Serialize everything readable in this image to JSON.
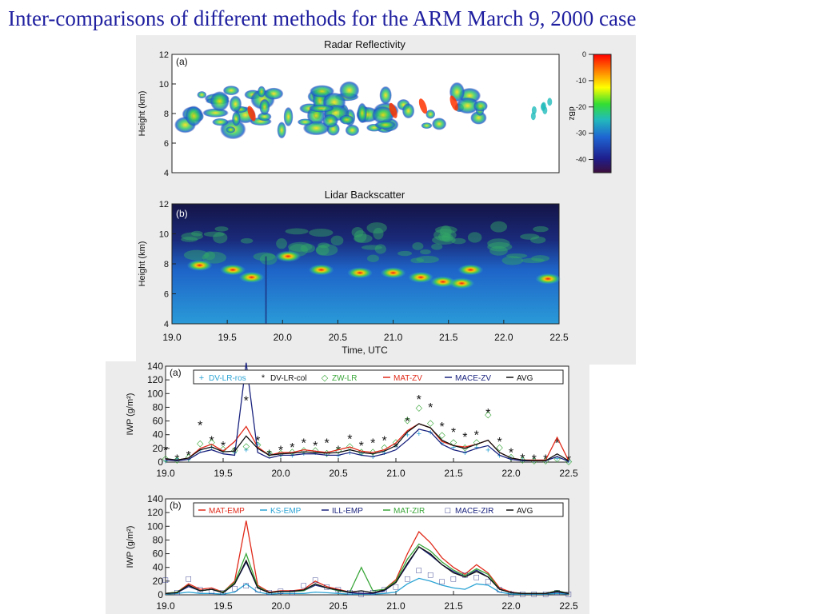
{
  "slide_title": "Inter-comparisons of different methods for the ARM March 9, 2000 case",
  "colors": {
    "title": "#1f1fa0",
    "colorbar": [
      "#ffffff",
      "#ff0000",
      "#ff8000",
      "#ffff00",
      "#33dd33",
      "#22bbbb",
      "#1e64d2",
      "#1e1e8c",
      "#3c0f3c"
    ]
  },
  "chart_data": [
    {
      "type": "heatmap",
      "panel_label": "(a)",
      "title": "Radar Reflectivity",
      "ylabel": "Height (km)",
      "y_ticks": [
        "4",
        "6",
        "8",
        "10",
        "12"
      ],
      "ylim": [
        4,
        12
      ],
      "xlim": [
        19.0,
        22.5
      ],
      "colorbar": {
        "label": "dBz",
        "ticks": [
          "0",
          "-10",
          "-20",
          "-30",
          "-40"
        ],
        "range": [
          -45,
          0
        ]
      }
    },
    {
      "type": "heatmap",
      "panel_label": "(b)",
      "title": "Lidar Backscatter",
      "ylabel": "Height (km)",
      "xlabel": "Time, UTC",
      "y_ticks": [
        "4",
        "6",
        "8",
        "10",
        "12"
      ],
      "x_ticks": [
        "19.0",
        "19.5",
        "20.0",
        "20.5",
        "21.0",
        "21.5",
        "22.0",
        "22.5"
      ],
      "ylim": [
        4,
        12
      ],
      "xlim": [
        19.0,
        22.5
      ]
    },
    {
      "type": "line",
      "panel_label": "(a)",
      "ylabel": "IWP (g/m²)",
      "y_ticks": [
        "0",
        "20",
        "40",
        "60",
        "80",
        "100",
        "120",
        "140"
      ],
      "x_ticks": [
        "19.0",
        "19.5",
        "20.0",
        "20.5",
        "21.0",
        "21.5",
        "22.0",
        "22.5"
      ],
      "ylim": [
        0,
        140
      ],
      "xlim": [
        19.0,
        22.5
      ],
      "x": [
        19.0,
        19.1,
        19.2,
        19.3,
        19.4,
        19.5,
        19.6,
        19.7,
        19.8,
        19.9,
        20.0,
        20.1,
        20.2,
        20.3,
        20.4,
        20.5,
        20.6,
        20.7,
        20.8,
        20.9,
        21.0,
        21.1,
        21.2,
        21.3,
        21.4,
        21.5,
        21.6,
        21.7,
        21.8,
        21.9,
        22.0,
        22.1,
        22.2,
        22.3,
        22.4,
        22.5
      ],
      "series": [
        {
          "name": "DV-LR-ros",
          "color": "#2aa3d4",
          "marker": "+",
          "values": [
            2,
            5,
            4,
            18,
            22,
            16,
            14,
            18,
            26,
            12,
            10,
            10,
            13,
            14,
            11,
            10,
            14,
            12,
            8,
            14,
            24,
            40,
            42,
            44,
            28,
            22,
            14,
            22,
            18,
            10,
            6,
            4,
            3,
            3,
            6,
            2
          ]
        },
        {
          "name": "DV-LR-col",
          "color": "#111111",
          "marker": "*",
          "values": [
            16,
            3,
            8,
            52,
            30,
            22,
            14,
            88,
            30,
            10,
            16,
            20,
            26,
            22,
            26,
            16,
            32,
            22,
            26,
            30,
            20,
            58,
            90,
            78,
            50,
            42,
            35,
            38,
            70,
            28,
            12,
            4,
            3,
            3,
            26,
            2
          ]
        },
        {
          "name": "ZW-LR",
          "color": "#3aa63a",
          "marker": "◇",
          "values": [
            6,
            4,
            8,
            28,
            30,
            20,
            18,
            24,
            26,
            14,
            14,
            16,
            18,
            18,
            14,
            18,
            24,
            16,
            16,
            22,
            30,
            62,
            80,
            58,
            40,
            30,
            22,
            30,
            70,
            22,
            8,
            4,
            3,
            3,
            6,
            2
          ]
        },
        {
          "name": "MAT-ZV",
          "color": "#e02a1a",
          "marker": "",
          "values": [
            4,
            3,
            6,
            20,
            26,
            16,
            30,
            52,
            22,
            10,
            14,
            14,
            18,
            16,
            14,
            18,
            22,
            16,
            14,
            18,
            28,
            46,
            56,
            50,
            30,
            24,
            22,
            26,
            32,
            14,
            6,
            3,
            3,
            3,
            36,
            2
          ]
        },
        {
          "name": "MACE-ZV",
          "color": "#1a237e",
          "marker": "",
          "values": [
            3,
            2,
            4,
            14,
            18,
            12,
            10,
            145,
            14,
            6,
            10,
            10,
            12,
            12,
            10,
            10,
            14,
            10,
            8,
            12,
            18,
            32,
            48,
            44,
            26,
            18,
            14,
            20,
            24,
            10,
            4,
            2,
            2,
            2,
            8,
            1
          ]
        },
        {
          "name": "AVG",
          "color": "#111111",
          "marker": "",
          "values": [
            5,
            3,
            6,
            18,
            22,
            15,
            16,
            38,
            20,
            10,
            12,
            13,
            15,
            14,
            13,
            14,
            18,
            14,
            12,
            16,
            24,
            44,
            56,
            50,
            32,
            24,
            20,
            26,
            32,
            14,
            6,
            3,
            2,
            2,
            12,
            2
          ]
        }
      ]
    },
    {
      "type": "line",
      "panel_label": "(b)",
      "ylabel": "IWP (g/m²)",
      "y_ticks": [
        "0",
        "20",
        "40",
        "60",
        "80",
        "100",
        "120",
        "140"
      ],
      "x_ticks": [
        "19.0",
        "19.5",
        "20.0",
        "20.5",
        "21.0",
        "21.5",
        "22.0",
        "22.5"
      ],
      "ylim": [
        0,
        140
      ],
      "xlim": [
        19.0,
        22.5
      ],
      "x": [
        19.0,
        19.1,
        19.2,
        19.3,
        19.4,
        19.5,
        19.6,
        19.7,
        19.8,
        19.9,
        20.0,
        20.1,
        20.2,
        20.3,
        20.4,
        20.5,
        20.6,
        20.7,
        20.8,
        20.9,
        21.0,
        21.1,
        21.2,
        21.3,
        21.4,
        21.5,
        21.6,
        21.7,
        21.8,
        21.9,
        22.0,
        22.1,
        22.2,
        22.3,
        22.4,
        22.5
      ],
      "series": [
        {
          "name": "MAT-EMP",
          "color": "#e02a1a",
          "marker": "",
          "values": [
            2,
            4,
            16,
            8,
            10,
            4,
            20,
            108,
            14,
            4,
            6,
            6,
            8,
            20,
            12,
            8,
            4,
            2,
            2,
            8,
            22,
            60,
            92,
            76,
            54,
            40,
            30,
            44,
            32,
            10,
            4,
            2,
            2,
            2,
            6,
            2
          ]
        },
        {
          "name": "KS-EMP",
          "color": "#2aa3d4",
          "marker": "",
          "values": [
            1,
            2,
            4,
            2,
            2,
            1,
            4,
            16,
            4,
            1,
            2,
            2,
            2,
            4,
            3,
            2,
            1,
            1,
            1,
            2,
            4,
            16,
            24,
            20,
            14,
            10,
            8,
            16,
            14,
            4,
            1,
            1,
            1,
            1,
            2,
            1
          ]
        },
        {
          "name": "ILL-EMP",
          "color": "#1a237e",
          "marker": "",
          "values": [
            2,
            3,
            12,
            6,
            8,
            3,
            16,
            48,
            10,
            3,
            5,
            5,
            6,
            14,
            10,
            6,
            3,
            2,
            2,
            6,
            18,
            44,
            70,
            58,
            44,
            34,
            26,
            36,
            26,
            8,
            3,
            2,
            2,
            2,
            4,
            2
          ]
        },
        {
          "name": "MAT-ZIR",
          "color": "#3aa63a",
          "marker": "",
          "values": [
            2,
            4,
            14,
            6,
            8,
            4,
            18,
            60,
            12,
            3,
            5,
            5,
            6,
            16,
            10,
            6,
            4,
            40,
            6,
            8,
            20,
            52,
            74,
            64,
            48,
            36,
            28,
            38,
            30,
            8,
            3,
            2,
            2,
            2,
            6,
            2
          ]
        },
        {
          "name": "MACE-ZIR",
          "color": "#1a237e",
          "marker": "□",
          "values": [
            22,
            4,
            24,
            8,
            6,
            4,
            10,
            14,
            8,
            4,
            6,
            4,
            14,
            22,
            12,
            8,
            4,
            2,
            4,
            8,
            12,
            24,
            36,
            30,
            20,
            24,
            30,
            26,
            20,
            8,
            2,
            2,
            2,
            2,
            4,
            2
          ]
        },
        {
          "name": "AVG",
          "color": "#111111",
          "marker": "",
          "values": [
            2,
            3,
            14,
            6,
            8,
            3,
            16,
            50,
            10,
            3,
            5,
            5,
            7,
            16,
            10,
            7,
            4,
            6,
            3,
            7,
            18,
            46,
            70,
            60,
            44,
            32,
            26,
            34,
            26,
            8,
            3,
            2,
            2,
            2,
            5,
            2
          ]
        }
      ]
    }
  ]
}
